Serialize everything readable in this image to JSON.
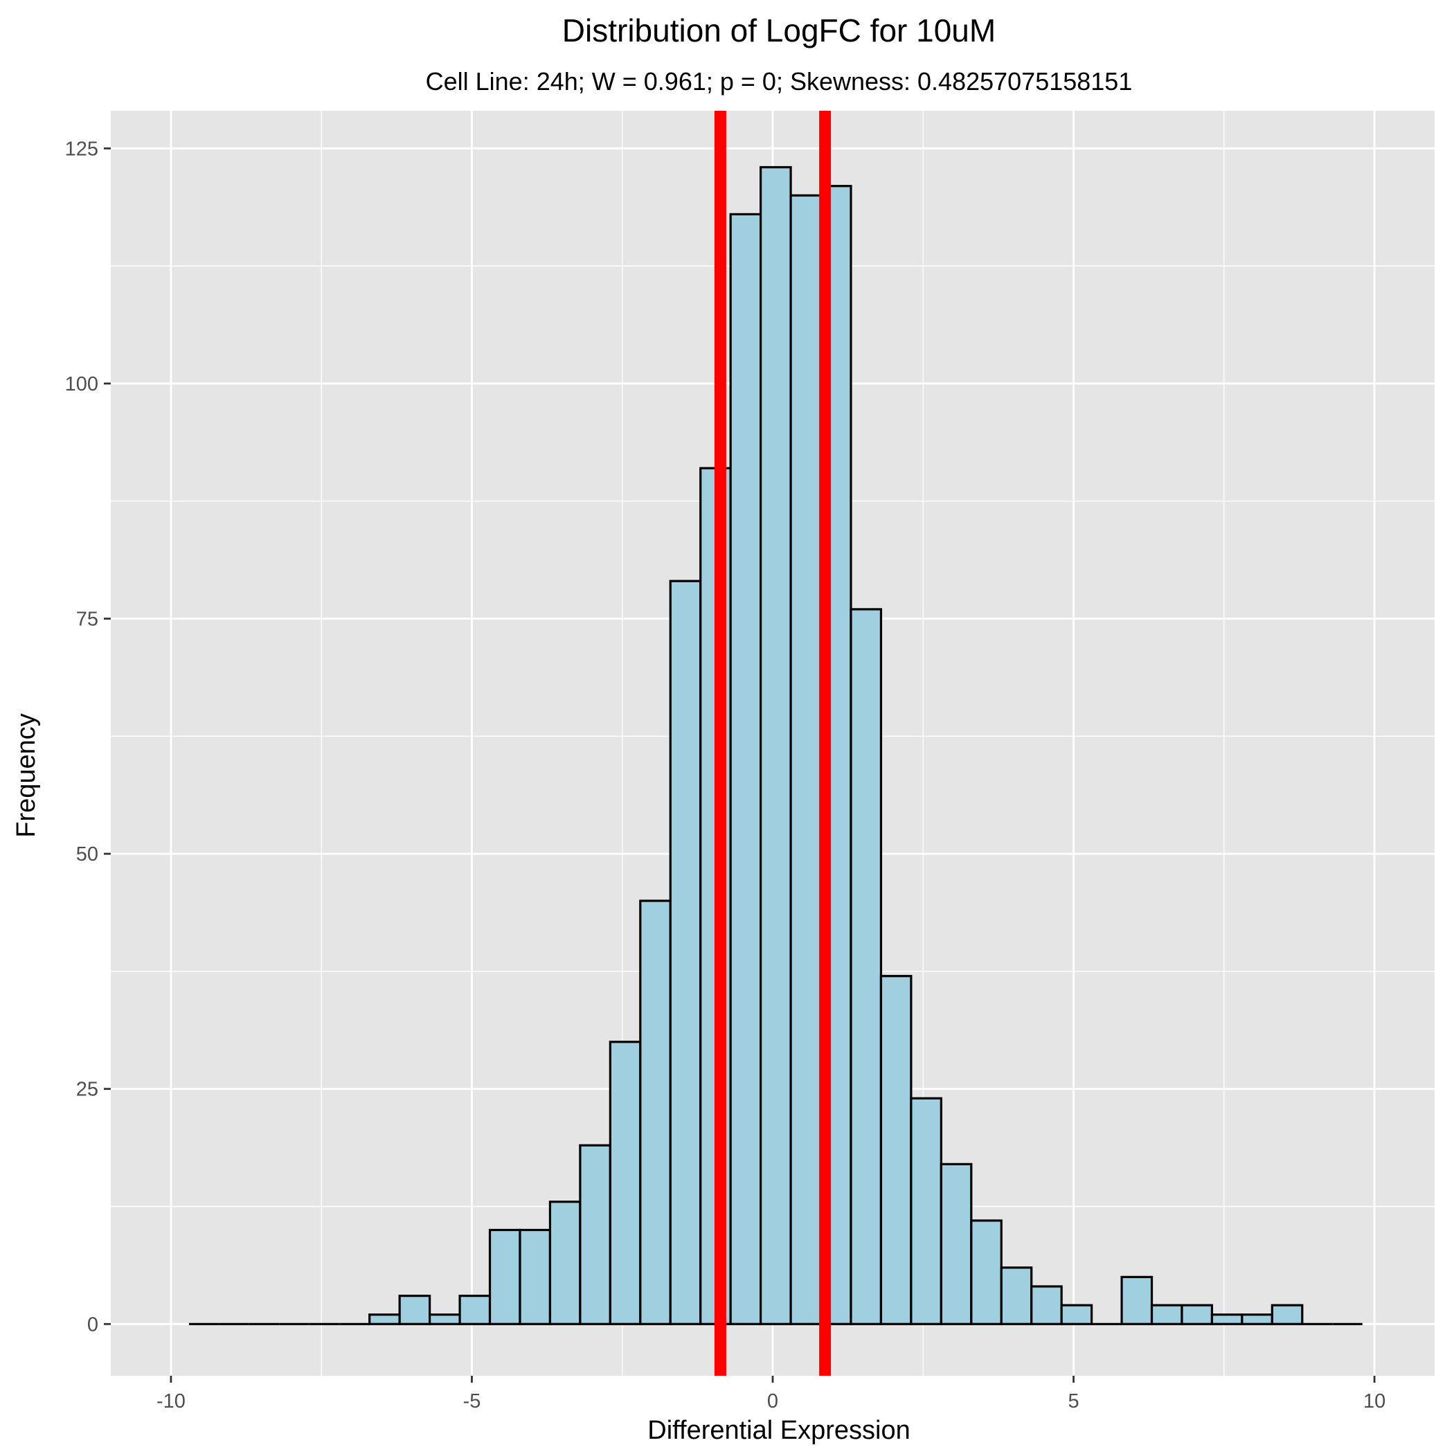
{
  "chart_data": {
    "type": "histogram",
    "title": "Distribution of LogFC for 10uM",
    "subtitle": "Cell Line: 24h; W = 0.961; p = 0; Skewness: 0.48257075158151",
    "xlabel": "Differential Expression",
    "ylabel": "Frequency",
    "xlim": [
      -11.0,
      11.0
    ],
    "ylim": [
      -5.5,
      129
    ],
    "x_ticks": [
      -10,
      -5,
      0,
      5,
      10
    ],
    "x_tick_labels": [
      "-10",
      "-5",
      "0",
      "5",
      "10"
    ],
    "y_ticks": [
      0,
      25,
      50,
      75,
      100,
      125
    ],
    "y_tick_labels": [
      "0",
      "25",
      "50",
      "75",
      "100",
      "125"
    ],
    "bin_width": 0.5,
    "bins_start": [
      -9.7,
      -9.2,
      -8.7,
      -8.2,
      -7.7,
      -7.2,
      -6.7,
      -6.2,
      -5.7,
      -5.2,
      -4.7,
      -4.2,
      -3.7,
      -3.2,
      -2.7,
      -2.2,
      -1.7,
      -1.2,
      -0.7,
      -0.2,
      0.3,
      0.8,
      1.3,
      1.8,
      2.3,
      2.8,
      3.3,
      3.8,
      4.3,
      4.8,
      5.3,
      5.8,
      6.3,
      6.8,
      7.3,
      7.8,
      8.3,
      8.8,
      9.3
    ],
    "values": [
      0,
      0,
      0,
      0,
      0,
      0,
      1,
      3,
      1,
      3,
      10,
      10,
      13,
      19,
      30,
      45,
      79,
      91,
      118,
      123,
      120,
      121,
      76,
      37,
      24,
      17,
      11,
      6,
      4,
      2,
      0,
      5,
      2,
      2,
      1,
      1,
      2,
      0,
      0
    ],
    "vlines": [
      -0.87,
      0.87
    ],
    "grid": true,
    "legend": "none",
    "colors": {
      "panel_background": "#e5e5e5",
      "grid": "#ffffff",
      "bar_fill": "#a0cfe0",
      "bar_outline": "#000000",
      "vline": "#ff0000"
    }
  }
}
